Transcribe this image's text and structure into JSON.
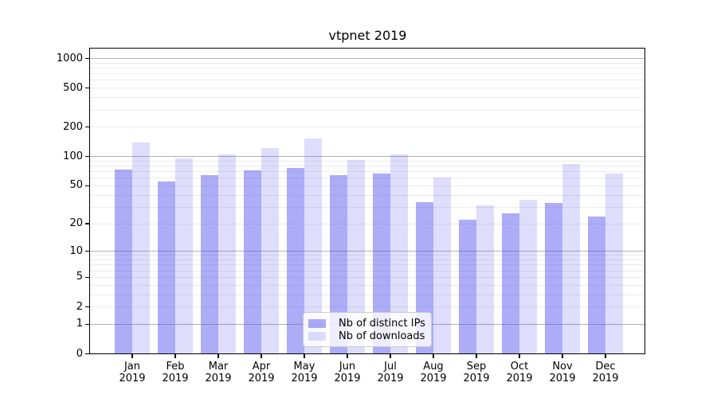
{
  "chart_data": {
    "type": "bar",
    "title": "vtpnet 2019",
    "xlabel": "",
    "ylabel": "",
    "y_scale": "log1p (position proportional to log10(value+1), linear below 1)",
    "grid": true,
    "legend_position": "lower center inside plot",
    "categories": [
      "Jan 2019",
      "Feb 2019",
      "Mar 2019",
      "Apr 2019",
      "May 2019",
      "Jun 2019",
      "Jul 2019",
      "Aug 2019",
      "Sep 2019",
      "Oct 2019",
      "Nov 2019",
      "Dec 2019"
    ],
    "series": [
      {
        "name": "Nb of distinct IPs",
        "color": "rgba(70,70,238,0.45)",
        "values": [
          73,
          55,
          64,
          72,
          76,
          64,
          67,
          34,
          22,
          26,
          33,
          24
        ]
      },
      {
        "name": "Nb of downloads",
        "color": "rgba(70,70,238,0.18)",
        "values": [
          140,
          95,
          105,
          122,
          154,
          93,
          105,
          61,
          31,
          36,
          84,
          67
        ]
      }
    ],
    "y_ticks": [
      0,
      1,
      2,
      5,
      10,
      20,
      50,
      100,
      200,
      500,
      1000
    ],
    "ylim": [
      0,
      1300
    ],
    "colors": {
      "major_grid": "#b3b3b3",
      "minor_grid": "#ececec",
      "spine": "#000000",
      "legend_border": "#cccccc"
    }
  }
}
